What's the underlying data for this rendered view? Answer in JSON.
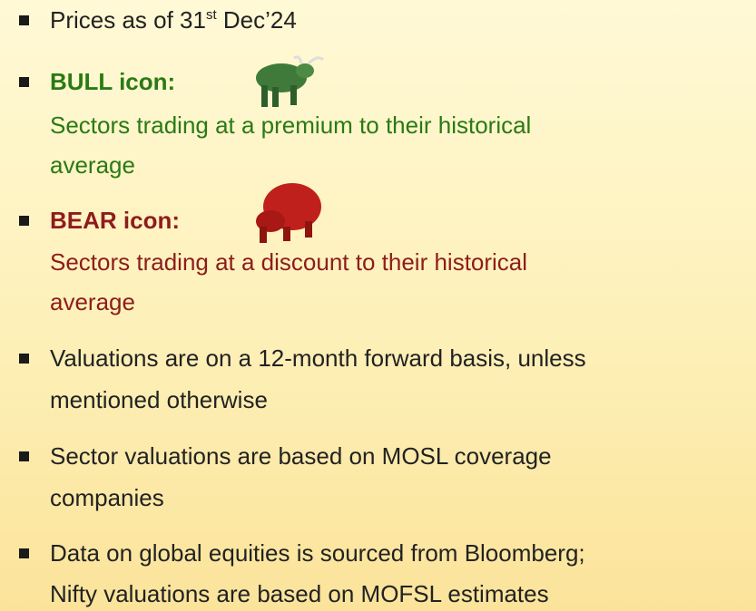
{
  "bullets": [
    {
      "parts": [
        "Prices as of 31",
        "st",
        " Dec’24"
      ]
    },
    {
      "label": "BULL icon:",
      "lines": [
        "Sectors trading at a premium to their historical",
        "average"
      ]
    },
    {
      "label": "BEAR icon:",
      "lines": [
        "Sectors trading at a discount to their historical",
        "average"
      ]
    },
    {
      "lines": [
        "Valuations are on a 12-month forward basis, unless",
        "mentioned otherwise"
      ]
    },
    {
      "lines": [
        "Sector valuations are based on MOSL coverage",
        "companies"
      ]
    },
    {
      "lines": [
        "Data on global equities is sourced from Bloomberg;",
        "Nifty valuations are based on MOFSL estimates"
      ]
    }
  ]
}
